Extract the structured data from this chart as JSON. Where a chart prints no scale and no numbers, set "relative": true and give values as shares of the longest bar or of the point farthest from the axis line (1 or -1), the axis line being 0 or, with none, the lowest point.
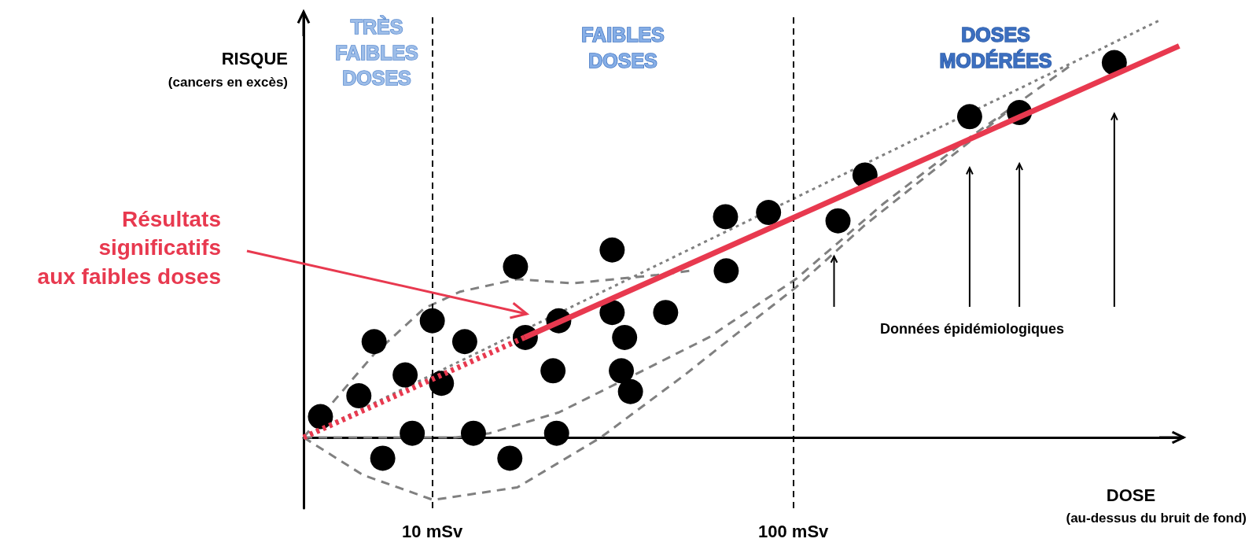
{
  "chart_data": {
    "type": "scatter",
    "xlabel": "DOSE\n(au-dessus du bruit de fond)",
    "ylabel": "RISQUE\n(cancers en excès)",
    "annotations": [
      "TRÈS\nFAIBLES\nDOSES",
      "FAIBLES\nDOSES",
      "DOSES\nMODÉRÉES",
      "Résultats\nsignificatifs\naux faibles doses",
      "Données épidémiologiques"
    ],
    "log": "x",
    "xlim": [
      4.4,
      1200
    ],
    "xticks": [
      {
        "value": 10,
        "label": "10 mSv"
      },
      {
        "value": 100,
        "label": "100 mSv"
      }
    ],
    "tick_labels": "x",
    "relative": true,
    "grid": false,
    "ref_lines": [
      {
        "axis": "x",
        "value": 10,
        "color": "#000000",
        "line_style": "dashed"
      },
      {
        "axis": "x",
        "value": 100,
        "color": "#000000",
        "line_style": "dashed"
      }
    ],
    "series": [
      {
        "type": "line",
        "marker": "none",
        "color": "#808080",
        "line_style": "dashed",
        "x": [
          4.4,
          5.37,
          6.9,
          9.5,
          11.95,
          17.2,
          24.5,
          41.9,
          51.5
        ],
        "values": [
          0,
          0.09,
          0.2,
          0.31,
          0.35,
          0.38,
          0.37,
          0.39,
          0.4
        ]
      },
      {
        "type": "line",
        "marker": "none",
        "color": "#808080",
        "line_style": "dashed",
        "x": [
          4.4,
          6.42,
          10.05,
          17.2,
          29.3,
          50,
          67.6,
          101.6,
          158,
          308,
          416
        ],
        "values": [
          0,
          -0.09,
          -0.15,
          -0.12,
          0,
          0.15,
          0.24,
          0.36,
          0.51,
          0.71,
          0.8
        ]
      },
      {
        "type": "line",
        "marker": "none",
        "color": "#808080",
        "line_style": "dashed",
        "x": [
          4.4,
          11.6,
          14.4,
          22.4,
          38.2,
          58.3,
          101.6,
          177,
          308,
          580
        ],
        "values": [
          0,
          0,
          0.01,
          0.06,
          0.16,
          0.24,
          0.38,
          0.56,
          0.72,
          0.89
        ]
      },
      {
        "type": "line",
        "marker": "none",
        "color": "#808080",
        "line_style": "dotted",
        "x": [
          4.4,
          1026
        ],
        "values": [
          0,
          1.0
        ]
      },
      {
        "type": "line",
        "marker": "none",
        "color": "#e8394f",
        "line_style": "dotted",
        "x": [
          4.4,
          18.0
        ],
        "values": [
          0,
          0.24
        ]
      },
      {
        "type": "line",
        "marker": "none",
        "color": "#e8394f",
        "line_style": "solid",
        "x": [
          18.0,
          1172
        ],
        "values": [
          0.24,
          0.94
        ]
      },
      {
        "marker": "circle",
        "color": "#000000",
        "x": [
          4.9,
          6.26,
          6.9,
          7.29,
          8.41,
          8.8,
          10,
          10.6,
          12.3,
          13,
          16.4,
          17,
          18.1,
          21.6,
          22.1,
          22.4,
          31.5,
          31.5,
          33.4,
          34.1,
          35.4,
          44.3,
          64.9,
          65.2,
          85.4,
          133,
          158,
          308,
          423,
          775
        ],
        "values": [
          0.05,
          0.1,
          0.23,
          -0.05,
          0.15,
          0.01,
          0.28,
          0.13,
          0.23,
          0.01,
          -0.05,
          0.41,
          0.24,
          0.16,
          0.01,
          0.28,
          0.45,
          0.3,
          0.16,
          0.24,
          0.11,
          0.3,
          0.53,
          0.4,
          0.54,
          0.52,
          0.63,
          0.77,
          0.78,
          0.9
        ]
      }
    ]
  }
}
